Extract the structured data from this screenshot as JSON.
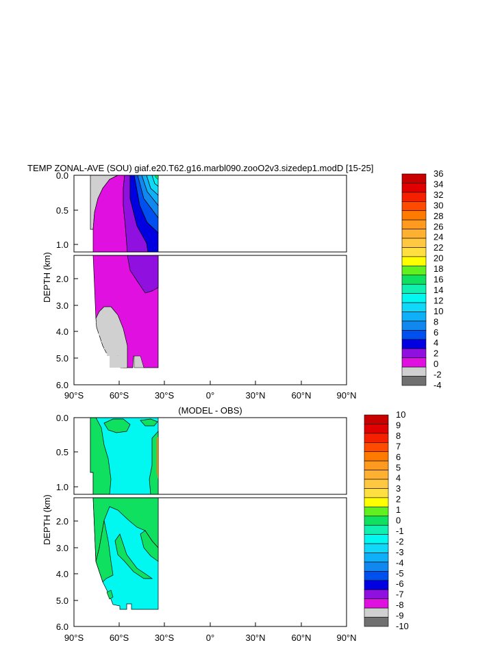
{
  "chart_data": [
    {
      "type": "contour",
      "title": "TEMP ZONAL-AVE (SOU) giaf.e20.T62.g16.marbl090.zooO2v3.sizedep1.modD [15-25]",
      "ylabel": "DEPTH (km)",
      "x_ticks": [
        "90°S",
        "60°S",
        "30°S",
        "0°",
        "30°N",
        "60°N",
        "90°N"
      ],
      "upper_y_ticks": [
        "0.0",
        "0.5",
        "1.0"
      ],
      "lower_y_ticks": [
        "2.0",
        "3.0",
        "4.0",
        "5.0",
        "6.0"
      ],
      "colorbar_levels": [
        "36",
        "34",
        "32",
        "30",
        "28",
        "26",
        "24",
        "22",
        "20",
        "18",
        "16",
        "14",
        "12",
        "10",
        "8",
        "6",
        "4",
        "2",
        "0",
        "-2",
        "-4"
      ],
      "colorbar_colors": [
        "#c80000",
        "#e00000",
        "#f52000",
        "#ff4a00",
        "#ff7a00",
        "#ff9a20",
        "#ffb030",
        "#ffc840",
        "#ffe040",
        "#ffff00",
        "#60f020",
        "#10e060",
        "#10f0b0",
        "#00f8f0",
        "#10d8f8",
        "#10b0f8",
        "#1088f0",
        "#0050f0",
        "#0000e0",
        "#9010e0",
        "#e010e0",
        "#d0d0d0",
        "#707070"
      ]
    },
    {
      "type": "contour",
      "title": "(MODEL - OBS)",
      "ylabel": "DEPTH (km)",
      "x_ticks": [
        "90°S",
        "60°S",
        "30°S",
        "0°",
        "30°N",
        "60°N",
        "90°N"
      ],
      "upper_y_ticks": [
        "0.0",
        "0.5",
        "1.0"
      ],
      "lower_y_ticks": [
        "2.0",
        "3.0",
        "4.0",
        "5.0",
        "6.0"
      ],
      "colorbar_levels": [
        "10",
        "9",
        "8",
        "7",
        "6",
        "5",
        "4",
        "3",
        "2",
        "1",
        "0",
        "-1",
        "-2",
        "-3",
        "-4",
        "-5",
        "-6",
        "-7",
        "-8",
        "-9",
        "-10"
      ],
      "colorbar_colors": [
        "#c80000",
        "#e00000",
        "#f52000",
        "#ff4a00",
        "#ff7a00",
        "#ff9a20",
        "#ffb030",
        "#ffc840",
        "#ffe040",
        "#ffff00",
        "#60f020",
        "#10e060",
        "#10f0b0",
        "#00f8f0",
        "#10d8f8",
        "#10b0f8",
        "#1088f0",
        "#0050f0",
        "#0000e0",
        "#9010e0",
        "#e010e0",
        "#d0d0d0",
        "#707070"
      ]
    }
  ]
}
